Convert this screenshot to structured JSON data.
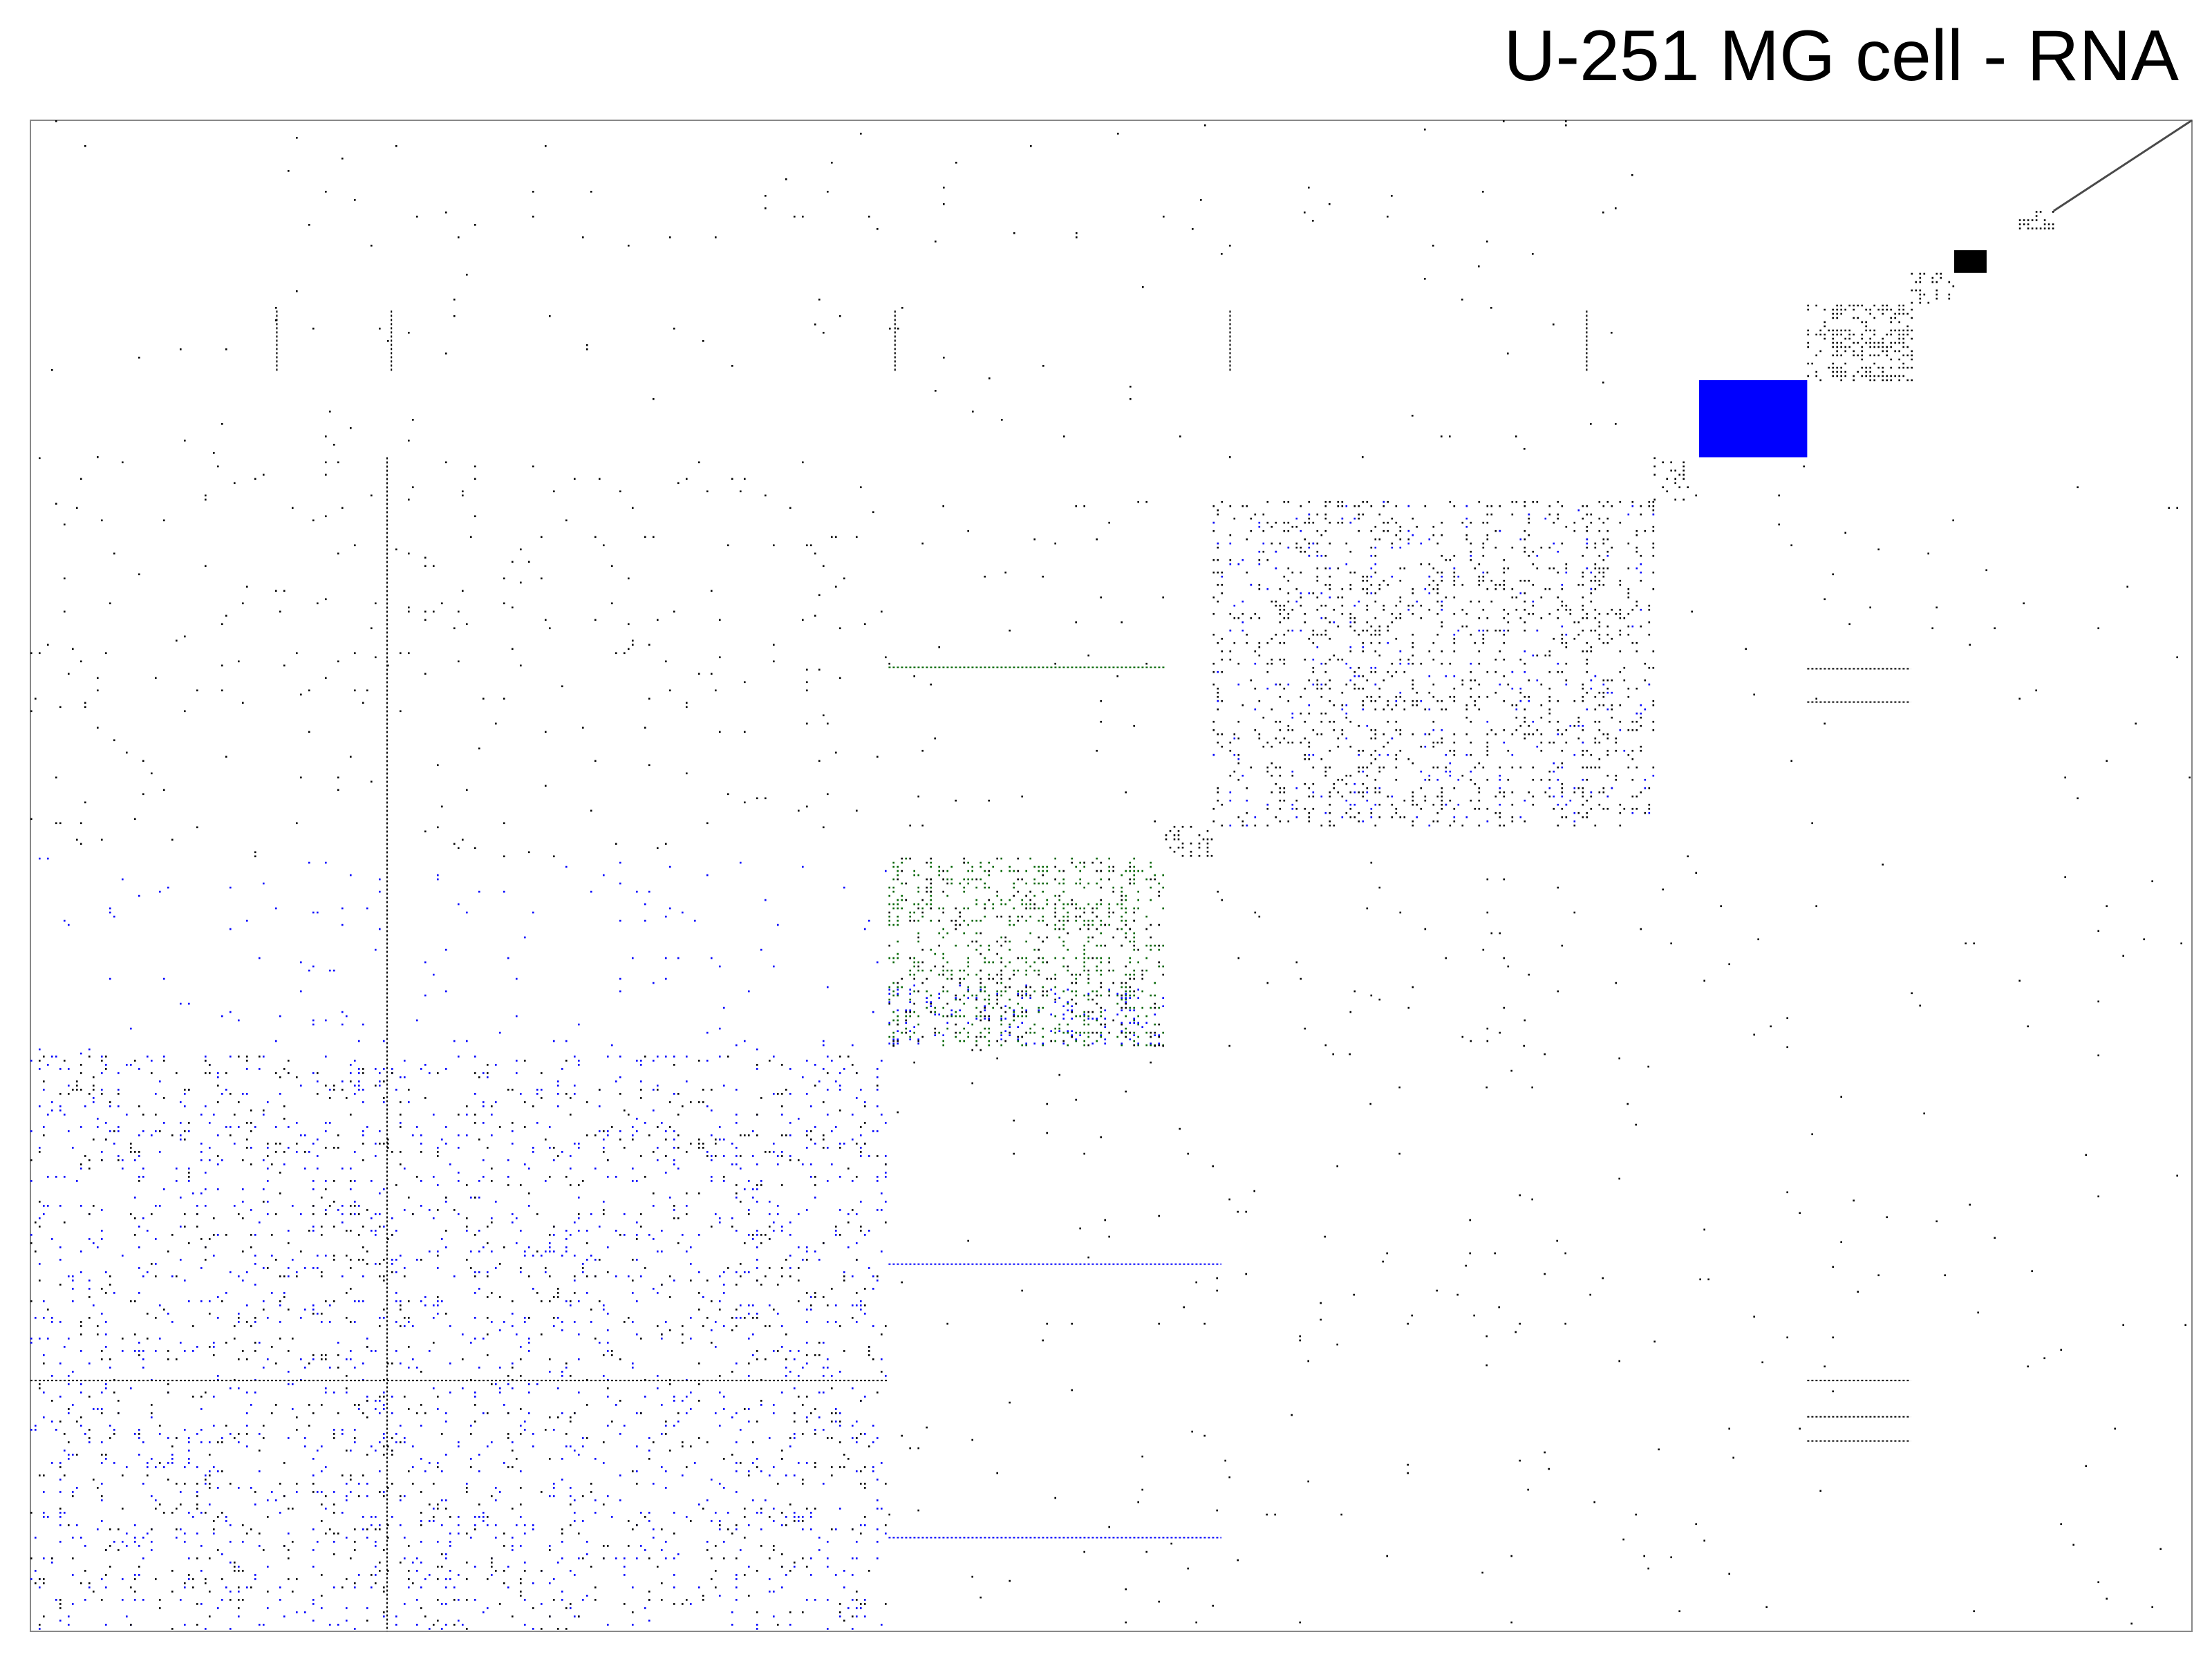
{
  "chart_data": {
    "type": "heatmap",
    "title": "U-251 MG cell - RNA",
    "xlabel": "",
    "ylabel": "",
    "legend": "none",
    "grid": false,
    "colors": {
      "background": "#ffffff",
      "frame": "#888888",
      "black": "#000000",
      "blue": "#0000ff",
      "green": "#006400",
      "diagonal": "#4a4a4a"
    },
    "x_range": [
      0,
      1
    ],
    "y_range": [
      0,
      1
    ],
    "blocks": [
      {
        "x0": 0.0,
        "x1": 0.397,
        "y0": 0.619,
        "y1": 1.0,
        "color": "blue",
        "density": 0.05
      },
      {
        "x0": 0.0,
        "x1": 0.397,
        "y0": 0.619,
        "y1": 1.0,
        "color": "black",
        "density": 0.04
      },
      {
        "x0": 0.397,
        "x1": 0.525,
        "y0": 0.488,
        "y1": 0.612,
        "color": "green",
        "density": 0.22
      },
      {
        "x0": 0.397,
        "x1": 0.525,
        "y0": 0.488,
        "y1": 0.612,
        "color": "black",
        "density": 0.11
      },
      {
        "x0": 0.397,
        "x1": 0.525,
        "y0": 0.572,
        "y1": 0.612,
        "color": "blue",
        "density": 0.12
      },
      {
        "x0": 0.547,
        "x1": 0.751,
        "y0": 0.252,
        "y1": 0.467,
        "color": "black",
        "density": 0.14
      },
      {
        "x0": 0.547,
        "x1": 0.751,
        "y0": 0.252,
        "y1": 0.467,
        "color": "blue",
        "density": 0.03
      },
      {
        "x0": 0.772,
        "x1": 0.822,
        "y0": 0.172,
        "y1": 0.223,
        "color": "blue",
        "density": 1.0
      },
      {
        "x0": 0.822,
        "x1": 0.87,
        "y0": 0.122,
        "y1": 0.172,
        "color": "black",
        "density": 0.38
      },
      {
        "x0": 0.89,
        "x1": 0.905,
        "y0": 0.086,
        "y1": 0.101,
        "color": "black",
        "density": 1.0
      },
      {
        "x0": 0.92,
        "x1": 0.936,
        "y0": 0.06,
        "y1": 0.072,
        "color": "black",
        "density": 0.6
      },
      {
        "x0": 0.525,
        "x1": 0.547,
        "y0": 0.467,
        "y1": 0.488,
        "color": "black",
        "density": 0.3
      },
      {
        "x0": 0.751,
        "x1": 0.772,
        "y0": 0.223,
        "y1": 0.252,
        "color": "black",
        "density": 0.25
      },
      {
        "x0": 0.87,
        "x1": 0.89,
        "y0": 0.101,
        "y1": 0.122,
        "color": "black",
        "density": 0.25
      },
      {
        "x0": 0.0,
        "x1": 0.397,
        "y0": 0.223,
        "y1": 0.488,
        "color": "black",
        "density": 0.012
      },
      {
        "x0": 0.0,
        "x1": 0.397,
        "y0": 0.488,
        "y1": 0.619,
        "color": "blue",
        "density": 0.012
      },
      {
        "x0": 0.397,
        "x1": 0.751,
        "y0": 0.612,
        "y1": 1.0,
        "color": "black",
        "density": 0.006
      },
      {
        "x0": 0.547,
        "x1": 0.751,
        "y0": 0.488,
        "y1": 0.612,
        "color": "black",
        "density": 0.01
      },
      {
        "x0": 0.397,
        "x1": 0.525,
        "y0": 0.252,
        "y1": 0.467,
        "color": "black",
        "density": 0.008
      },
      {
        "x0": 0.751,
        "x1": 1.0,
        "y0": 0.223,
        "y1": 1.0,
        "color": "black",
        "density": 0.003
      },
      {
        "x0": 0.0,
        "x1": 0.751,
        "y0": 0.0,
        "y1": 0.223,
        "color": "black",
        "density": 0.004
      }
    ],
    "diagonal": {
      "x0": 0.936,
      "x1": 1.0,
      "y0": 0.0,
      "y1": 0.06
    },
    "bands": [
      {
        "orientation": "vertical",
        "at": 0.114,
        "from": 0.126,
        "to": 0.167,
        "color": "black"
      },
      {
        "orientation": "vertical",
        "at": 0.167,
        "from": 0.126,
        "to": 0.167,
        "color": "black"
      },
      {
        "orientation": "vertical",
        "at": 0.4,
        "from": 0.126,
        "to": 0.167,
        "color": "black"
      },
      {
        "orientation": "vertical",
        "at": 0.555,
        "from": 0.126,
        "to": 0.167,
        "color": "black"
      },
      {
        "orientation": "vertical",
        "at": 0.72,
        "from": 0.126,
        "to": 0.167,
        "color": "black"
      },
      {
        "orientation": "vertical",
        "at": 0.165,
        "from": 0.223,
        "to": 1.0,
        "color": "black"
      },
      {
        "orientation": "horizontal",
        "at": 0.834,
        "from": 0.0,
        "to": 0.397,
        "color": "black"
      },
      {
        "orientation": "horizontal",
        "at": 0.834,
        "from": 0.822,
        "to": 0.87,
        "color": "black"
      },
      {
        "orientation": "horizontal",
        "at": 0.858,
        "from": 0.822,
        "to": 0.87,
        "color": "black"
      },
      {
        "orientation": "horizontal",
        "at": 0.874,
        "from": 0.822,
        "to": 0.87,
        "color": "black"
      },
      {
        "orientation": "horizontal",
        "at": 0.362,
        "from": 0.397,
        "to": 0.525,
        "color": "green"
      },
      {
        "orientation": "horizontal",
        "at": 0.757,
        "from": 0.397,
        "to": 0.551,
        "color": "blue"
      },
      {
        "orientation": "horizontal",
        "at": 0.938,
        "from": 0.397,
        "to": 0.551,
        "color": "blue"
      },
      {
        "orientation": "horizontal",
        "at": 0.363,
        "from": 0.822,
        "to": 0.87,
        "color": "black"
      },
      {
        "orientation": "horizontal",
        "at": 0.385,
        "from": 0.822,
        "to": 0.87,
        "color": "black"
      }
    ]
  }
}
